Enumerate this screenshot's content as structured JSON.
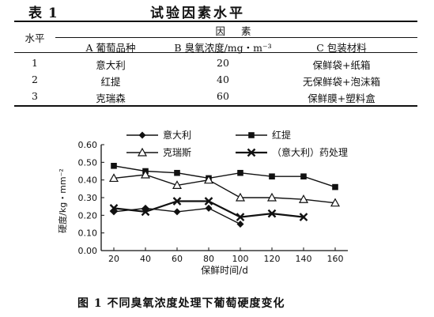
{
  "table": {
    "label": "表 1",
    "title": "试验因素水平",
    "level_header": "水平",
    "factor_header": "因 素",
    "columns": [
      "A 葡萄品种",
      "B 臭氧浓度/mg・m⁻³",
      "C 包装材料"
    ],
    "rows": [
      {
        "level": "1",
        "a": "意大利",
        "b": "20",
        "c": "保鲜袋+纸箱"
      },
      {
        "level": "2",
        "a": "红提",
        "b": "40",
        "c": "无保鲜袋+泡沫箱"
      },
      {
        "level": "3",
        "a": "克瑞森",
        "b": "60",
        "c": "保鲜膜+塑料盒"
      }
    ]
  },
  "figure_caption": "图 1 不同臭氧浓度处理下葡萄硬度变化",
  "chart_data": {
    "type": "line",
    "xlabel": "保鲜时间/d",
    "ylabel": "硬度/kg・mm⁻²",
    "x_ticks": [
      "20",
      "40",
      "60",
      "80",
      "100",
      "120",
      "140",
      "160"
    ],
    "y_ticks": [
      "0.00",
      "0.10",
      "0.20",
      "0.30",
      "0.40",
      "0.50",
      "0.60"
    ],
    "xlim": [
      12,
      168
    ],
    "ylim": [
      0,
      0.6
    ],
    "legend_position": "top",
    "grid": false,
    "series": [
      {
        "name": "意大利",
        "marker": "diamond",
        "x": [
          20,
          40,
          60,
          80,
          100
        ],
        "values": [
          0.22,
          0.24,
          0.22,
          0.24,
          0.15
        ]
      },
      {
        "name": "红提",
        "marker": "square",
        "x": [
          20,
          40,
          60,
          80,
          100,
          120,
          140,
          160
        ],
        "values": [
          0.48,
          0.45,
          0.44,
          0.41,
          0.44,
          0.42,
          0.42,
          0.36
        ]
      },
      {
        "name": "克瑞斯",
        "marker": "triangle",
        "x": [
          20,
          40,
          60,
          80,
          100,
          120,
          140,
          160
        ],
        "values": [
          0.41,
          0.43,
          0.37,
          0.4,
          0.3,
          0.3,
          0.29,
          0.27
        ]
      },
      {
        "name": "（意大利）药处理",
        "marker": "x",
        "x": [
          20,
          40,
          60,
          80,
          100,
          120,
          140
        ],
        "values": [
          0.24,
          0.22,
          0.28,
          0.28,
          0.19,
          0.21,
          0.19
        ]
      }
    ]
  }
}
